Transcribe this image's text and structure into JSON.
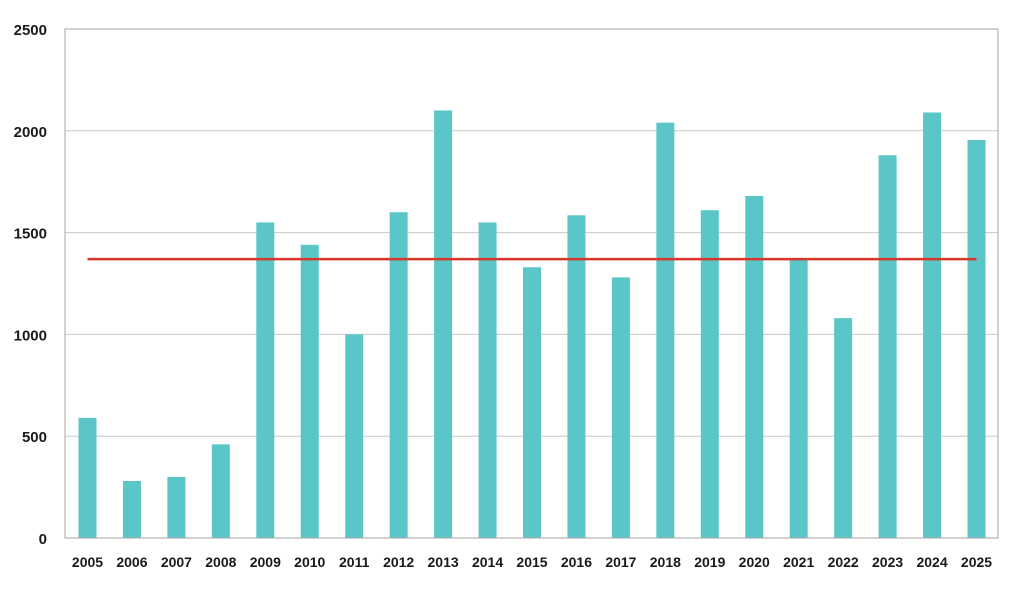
{
  "chart_data": {
    "type": "bar",
    "title": "",
    "xlabel": "",
    "ylabel": "",
    "categories": [
      "2005",
      "2006",
      "2007",
      "2008",
      "2009",
      "2010",
      "2011",
      "2012",
      "2013",
      "2014",
      "2015",
      "2016",
      "2017",
      "2018",
      "2019",
      "2020",
      "2021",
      "2022",
      "2023",
      "2024",
      "2025"
    ],
    "values": [
      590,
      280,
      300,
      460,
      1550,
      1440,
      1000,
      1600,
      2100,
      1550,
      1330,
      1585,
      1280,
      2040,
      1610,
      1680,
      1370,
      1080,
      1880,
      2090,
      1955
    ],
    "ylim": [
      0,
      2500
    ],
    "yticks": [
      0,
      500,
      1000,
      1500,
      2000,
      2500
    ],
    "reference_line": {
      "value": 1370,
      "color": "#d9352b"
    },
    "bar_color": "#5bc6c7",
    "grid": true,
    "legend": "none"
  }
}
